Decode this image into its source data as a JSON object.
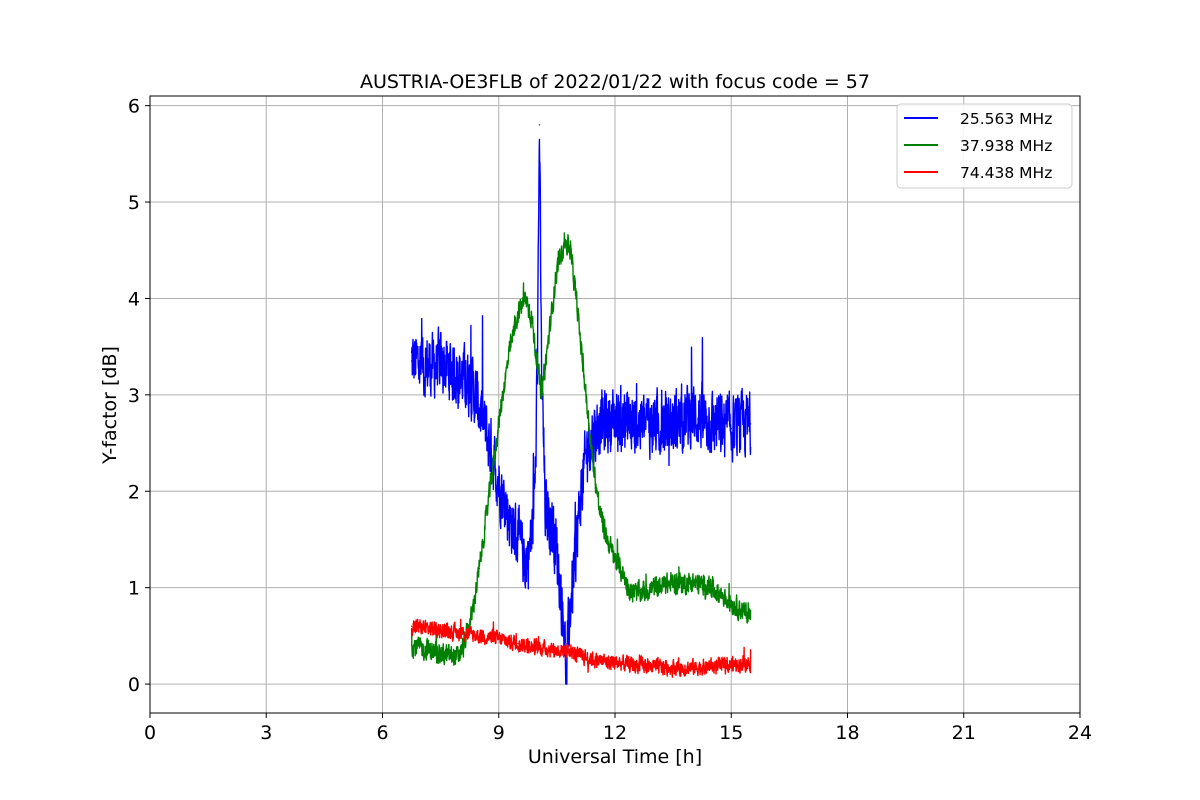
{
  "chart_data": {
    "type": "line",
    "title": "AUSTRIA-OE3FLB of 2022/01/22 with focus code = 57",
    "xlabel": "Universal Time [h]",
    "ylabel": "Y-factor [dB]",
    "xlim": [
      0,
      24
    ],
    "ylim": [
      -0.3,
      6.1
    ],
    "xticks": [
      0,
      3,
      6,
      9,
      12,
      15,
      18,
      21,
      24
    ],
    "yticks": [
      0,
      1,
      2,
      3,
      4,
      5,
      6
    ],
    "grid": true,
    "legend_position": "top-right",
    "series": [
      {
        "name": "25.563 MHz",
        "color": "#0000ff",
        "noise": [
          0.9,
          0.55
        ],
        "points": [
          [
            6.75,
            3.35
          ],
          [
            7.2,
            3.3
          ],
          [
            7.6,
            3.3
          ],
          [
            8.0,
            3.2
          ],
          [
            8.3,
            3.1
          ],
          [
            8.55,
            2.8
          ],
          [
            8.75,
            2.5
          ],
          [
            9.0,
            2.1
          ],
          [
            9.3,
            1.7
          ],
          [
            9.5,
            1.5
          ],
          [
            9.7,
            1.25
          ],
          [
            9.85,
            1.5
          ],
          [
            9.95,
            2.2
          ],
          [
            10.0,
            3.5
          ],
          [
            10.05,
            5.8
          ],
          [
            10.1,
            3.4
          ],
          [
            10.2,
            1.8
          ],
          [
            10.35,
            1.7
          ],
          [
            10.5,
            1.4
          ],
          [
            10.6,
            0.95
          ],
          [
            10.7,
            0.5
          ],
          [
            10.75,
            0.0
          ],
          [
            10.8,
            0.6
          ],
          [
            10.95,
            1.2
          ],
          [
            11.1,
            1.9
          ],
          [
            11.3,
            2.5
          ],
          [
            11.6,
            2.7
          ],
          [
            12.0,
            2.75
          ],
          [
            12.5,
            2.7
          ],
          [
            13.0,
            2.7
          ],
          [
            13.5,
            2.7
          ],
          [
            13.8,
            2.75
          ],
          [
            14.0,
            2.8
          ],
          [
            14.5,
            2.7
          ],
          [
            15.0,
            2.65
          ],
          [
            15.5,
            2.7
          ]
        ]
      },
      {
        "name": "37.938 MHz",
        "color": "#008000",
        "noise": [
          0.3,
          0.15
        ],
        "points": [
          [
            6.75,
            0.4
          ],
          [
            7.2,
            0.35
          ],
          [
            7.6,
            0.3
          ],
          [
            7.95,
            0.28
          ],
          [
            8.1,
            0.4
          ],
          [
            8.3,
            0.7
          ],
          [
            8.5,
            1.2
          ],
          [
            8.7,
            1.8
          ],
          [
            8.9,
            2.4
          ],
          [
            9.1,
            3.0
          ],
          [
            9.3,
            3.5
          ],
          [
            9.5,
            3.85
          ],
          [
            9.7,
            4.0
          ],
          [
            9.85,
            3.8
          ],
          [
            10.0,
            3.3
          ],
          [
            10.1,
            3.0
          ],
          [
            10.2,
            3.3
          ],
          [
            10.35,
            3.8
          ],
          [
            10.5,
            4.3
          ],
          [
            10.7,
            4.6
          ],
          [
            10.85,
            4.5
          ],
          [
            11.0,
            4.0
          ],
          [
            11.2,
            3.2
          ],
          [
            11.4,
            2.4
          ],
          [
            11.6,
            1.8
          ],
          [
            11.8,
            1.5
          ],
          [
            12.0,
            1.3
          ],
          [
            12.2,
            1.15
          ],
          [
            12.4,
            0.95
          ],
          [
            12.7,
            0.95
          ],
          [
            13.0,
            1.0
          ],
          [
            13.5,
            1.05
          ],
          [
            14.0,
            1.05
          ],
          [
            14.5,
            1.0
          ],
          [
            15.0,
            0.85
          ],
          [
            15.5,
            0.7
          ]
        ]
      },
      {
        "name": "74.438 MHz",
        "color": "#ff0000",
        "noise": [
          0.22,
          0.12
        ],
        "points": [
          [
            6.75,
            0.6
          ],
          [
            7.2,
            0.58
          ],
          [
            7.6,
            0.55
          ],
          [
            8.0,
            0.53
          ],
          [
            8.5,
            0.5
          ],
          [
            9.0,
            0.47
          ],
          [
            9.5,
            0.42
          ],
          [
            10.0,
            0.38
          ],
          [
            10.5,
            0.35
          ],
          [
            10.8,
            0.35
          ],
          [
            11.0,
            0.3
          ],
          [
            11.5,
            0.25
          ],
          [
            12.0,
            0.22
          ],
          [
            12.5,
            0.2
          ],
          [
            13.0,
            0.18
          ],
          [
            13.5,
            0.17
          ],
          [
            14.0,
            0.17
          ],
          [
            14.5,
            0.18
          ],
          [
            15.0,
            0.2
          ],
          [
            15.5,
            0.22
          ]
        ]
      }
    ]
  }
}
